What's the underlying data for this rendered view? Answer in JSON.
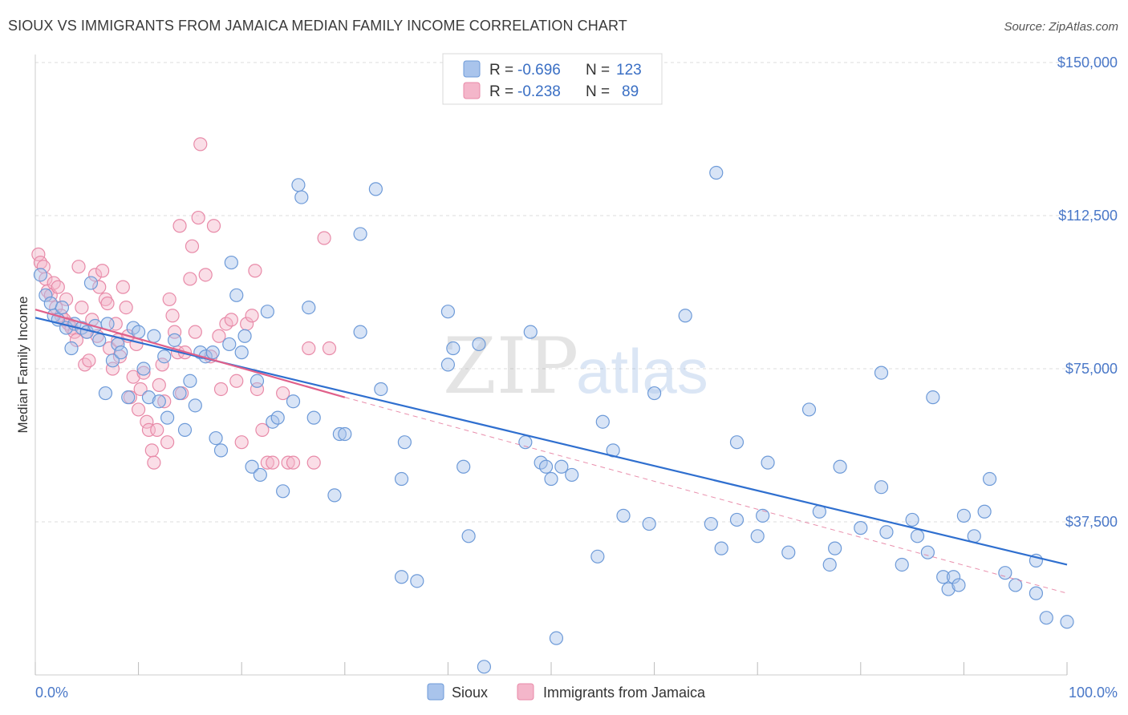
{
  "title": "SIOUX VS IMMIGRANTS FROM JAMAICA MEDIAN FAMILY INCOME CORRELATION CHART",
  "source": "Source: ZipAtlas.com",
  "watermark": {
    "zip": "ZIP",
    "atlas": "atlas"
  },
  "colors": {
    "sioux_fill": "#a9c4ec",
    "sioux_stroke": "#6d9ad8",
    "sioux_line": "#2f6fcf",
    "jam_fill": "#f4b6ca",
    "jam_stroke": "#e88aa8",
    "jam_line": "#e0608a",
    "tick_label": "#4a78c8",
    "grid": "#dddddd"
  },
  "legend": {
    "r_label": "R =",
    "n_label": "N =",
    "rows": [
      {
        "r": "-0.696",
        "n": "123"
      },
      {
        "r": "-0.238",
        "n": "89"
      }
    ]
  },
  "chart_data": {
    "type": "scatter",
    "ylabel": "Median Family Income",
    "xlim": [
      0,
      100
    ],
    "ylim": [
      0,
      150000
    ],
    "y_ticks": [
      37500,
      75000,
      112500,
      150000
    ],
    "y_tick_labels": [
      "$37,500",
      "$75,000",
      "$112,500",
      "$150,000"
    ],
    "x_tick_labels": [
      "0.0%",
      "100.0%"
    ],
    "series": [
      {
        "name": "Sioux",
        "trend": {
          "x0": 0,
          "y0": 87500,
          "x1": 100,
          "y1": 27000
        },
        "points": [
          [
            0.5,
            98000
          ],
          [
            1.0,
            93000
          ],
          [
            1.5,
            91000
          ],
          [
            1.8,
            88000
          ],
          [
            2.2,
            87000
          ],
          [
            2.6,
            90000
          ],
          [
            3.0,
            85000
          ],
          [
            3.5,
            80000
          ],
          [
            3.8,
            86000
          ],
          [
            4.5,
            85000
          ],
          [
            5.0,
            84000
          ],
          [
            5.4,
            96000
          ],
          [
            5.8,
            85500
          ],
          [
            6.2,
            82000
          ],
          [
            6.8,
            69000
          ],
          [
            7.0,
            86000
          ],
          [
            7.5,
            77000
          ],
          [
            8.0,
            81000
          ],
          [
            8.3,
            79000
          ],
          [
            9.0,
            68000
          ],
          [
            9.5,
            85000
          ],
          [
            10.0,
            84000
          ],
          [
            10.5,
            75000
          ],
          [
            11.0,
            68000
          ],
          [
            11.5,
            83000
          ],
          [
            12.0,
            67000
          ],
          [
            12.5,
            78000
          ],
          [
            12.8,
            63000
          ],
          [
            13.5,
            82000
          ],
          [
            14.0,
            69000
          ],
          [
            14.5,
            60000
          ],
          [
            15.0,
            72000
          ],
          [
            15.5,
            66000
          ],
          [
            16.0,
            79000
          ],
          [
            16.5,
            78000
          ],
          [
            17.2,
            79000
          ],
          [
            17.5,
            58000
          ],
          [
            18.0,
            55000
          ],
          [
            18.8,
            81000
          ],
          [
            19.0,
            101000
          ],
          [
            19.5,
            93000
          ],
          [
            20.0,
            79000
          ],
          [
            20.3,
            83000
          ],
          [
            21.0,
            51000
          ],
          [
            21.5,
            72000
          ],
          [
            21.8,
            49000
          ],
          [
            22.5,
            89000
          ],
          [
            23.0,
            62000
          ],
          [
            23.5,
            63000
          ],
          [
            24.0,
            45000
          ],
          [
            25.0,
            67000
          ],
          [
            25.5,
            120000
          ],
          [
            25.8,
            117000
          ],
          [
            26.5,
            90000
          ],
          [
            27.0,
            63000
          ],
          [
            29.0,
            44000
          ],
          [
            29.5,
            59000
          ],
          [
            30.0,
            59000
          ],
          [
            31.5,
            84000
          ],
          [
            31.5,
            108000
          ],
          [
            33.0,
            119000
          ],
          [
            33.5,
            70000
          ],
          [
            35.5,
            48000
          ],
          [
            35.8,
            57000
          ],
          [
            35.5,
            24000
          ],
          [
            37.0,
            23000
          ],
          [
            40.0,
            89000
          ],
          [
            40.0,
            76000
          ],
          [
            40.5,
            80000
          ],
          [
            41.5,
            51000
          ],
          [
            42.0,
            34000
          ],
          [
            43.0,
            81000
          ],
          [
            43.5,
            2000
          ],
          [
            47.5,
            57000
          ],
          [
            48.0,
            84000
          ],
          [
            49.0,
            52000
          ],
          [
            49.5,
            51000
          ],
          [
            50.0,
            48000
          ],
          [
            50.5,
            9000
          ],
          [
            51.0,
            51000
          ],
          [
            52.0,
            49000
          ],
          [
            54.5,
            29000
          ],
          [
            55.0,
            62000
          ],
          [
            56.0,
            55000
          ],
          [
            57.0,
            39000
          ],
          [
            59.5,
            37000
          ],
          [
            60.0,
            69000
          ],
          [
            63.0,
            88000
          ],
          [
            65.5,
            37000
          ],
          [
            66.0,
            123000
          ],
          [
            66.5,
            31000
          ],
          [
            68.0,
            57000
          ],
          [
            68.0,
            38000
          ],
          [
            70.0,
            34000
          ],
          [
            70.5,
            39000
          ],
          [
            71.0,
            52000
          ],
          [
            73.0,
            30000
          ],
          [
            75.0,
            65000
          ],
          [
            76.0,
            40000
          ],
          [
            77.0,
            27000
          ],
          [
            77.5,
            31000
          ],
          [
            78.0,
            51000
          ],
          [
            80.0,
            36000
          ],
          [
            82.0,
            74000
          ],
          [
            82.0,
            46000
          ],
          [
            82.5,
            35000
          ],
          [
            84.0,
            27000
          ],
          [
            85.0,
            38000
          ],
          [
            85.5,
            34000
          ],
          [
            86.5,
            30000
          ],
          [
            87.0,
            68000
          ],
          [
            88.0,
            24000
          ],
          [
            88.5,
            21000
          ],
          [
            89.0,
            24000
          ],
          [
            89.5,
            22000
          ],
          [
            90.0,
            39000
          ],
          [
            91.0,
            34000
          ],
          [
            92.0,
            40000
          ],
          [
            92.5,
            48000
          ],
          [
            94.0,
            25000
          ],
          [
            95.0,
            22000
          ],
          [
            97.0,
            28000
          ],
          [
            97.0,
            20000
          ],
          [
            98.0,
            14000
          ],
          [
            100.0,
            13000
          ]
        ]
      },
      {
        "name": "Immigrants from Jamaica",
        "trend": {
          "x0": 0,
          "y0": 89500,
          "x1": 30,
          "y1": 68000,
          "dash_x1": 100,
          "dash_y1": 20000
        },
        "points": [
          [
            0.3,
            103000
          ],
          [
            0.5,
            101000
          ],
          [
            0.8,
            100000
          ],
          [
            1.0,
            97000
          ],
          [
            1.2,
            94000
          ],
          [
            1.5,
            93000
          ],
          [
            1.8,
            96000
          ],
          [
            2.0,
            90000
          ],
          [
            2.2,
            95000
          ],
          [
            2.5,
            88000
          ],
          [
            2.8,
            87000
          ],
          [
            3.0,
            92000
          ],
          [
            3.2,
            86000
          ],
          [
            3.5,
            85000
          ],
          [
            3.8,
            84000
          ],
          [
            4.0,
            82000
          ],
          [
            4.2,
            100000
          ],
          [
            4.5,
            90000
          ],
          [
            4.8,
            76000
          ],
          [
            5.0,
            84000
          ],
          [
            5.2,
            77000
          ],
          [
            5.5,
            87000
          ],
          [
            5.8,
            98000
          ],
          [
            6.0,
            83000
          ],
          [
            6.2,
            95000
          ],
          [
            6.5,
            99000
          ],
          [
            6.8,
            92000
          ],
          [
            7.0,
            91000
          ],
          [
            7.2,
            80000
          ],
          [
            7.5,
            75000
          ],
          [
            7.8,
            86000
          ],
          [
            8.0,
            82000
          ],
          [
            8.2,
            78000
          ],
          [
            8.5,
            95000
          ],
          [
            8.8,
            90000
          ],
          [
            9.0,
            83000
          ],
          [
            9.2,
            68000
          ],
          [
            9.5,
            73000
          ],
          [
            9.8,
            81000
          ],
          [
            10.0,
            65000
          ],
          [
            10.2,
            70000
          ],
          [
            10.5,
            74000
          ],
          [
            10.8,
            62000
          ],
          [
            11.0,
            60000
          ],
          [
            11.3,
            55000
          ],
          [
            11.5,
            52000
          ],
          [
            11.8,
            60000
          ],
          [
            12.0,
            71000
          ],
          [
            12.3,
            76000
          ],
          [
            12.5,
            67000
          ],
          [
            12.8,
            57000
          ],
          [
            13.0,
            92000
          ],
          [
            13.3,
            88000
          ],
          [
            13.5,
            84000
          ],
          [
            13.8,
            79000
          ],
          [
            14.0,
            110000
          ],
          [
            14.2,
            69000
          ],
          [
            14.5,
            79000
          ],
          [
            15.0,
            97000
          ],
          [
            15.2,
            105000
          ],
          [
            15.5,
            84000
          ],
          [
            15.8,
            112000
          ],
          [
            16.0,
            130000
          ],
          [
            16.5,
            98000
          ],
          [
            17.0,
            78000
          ],
          [
            17.3,
            110000
          ],
          [
            17.8,
            83000
          ],
          [
            18.0,
            70000
          ],
          [
            18.5,
            86000
          ],
          [
            19.0,
            87000
          ],
          [
            19.5,
            72000
          ],
          [
            20.0,
            57000
          ],
          [
            20.5,
            86000
          ],
          [
            21.0,
            88000
          ],
          [
            21.3,
            99000
          ],
          [
            21.5,
            70000
          ],
          [
            22.0,
            60000
          ],
          [
            22.5,
            52000
          ],
          [
            23.0,
            52000
          ],
          [
            24.0,
            69000
          ],
          [
            24.5,
            52000
          ],
          [
            25.0,
            52000
          ],
          [
            26.5,
            80000
          ],
          [
            27.0,
            52000
          ],
          [
            28.0,
            107000
          ],
          [
            28.5,
            80000
          ]
        ]
      }
    ]
  },
  "bottom_legend": [
    "Sioux",
    "Immigrants from Jamaica"
  ]
}
